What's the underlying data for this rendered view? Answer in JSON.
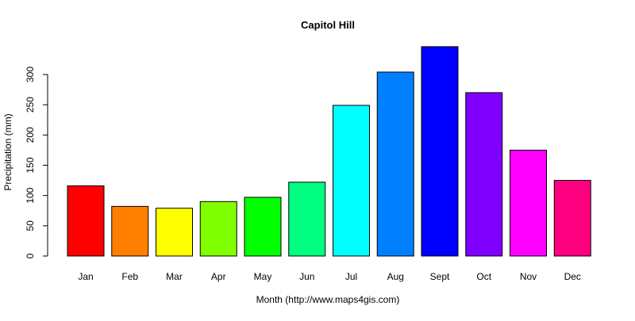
{
  "chart_data": {
    "type": "bar",
    "title": "Capitol Hill",
    "xlabel": "Month (http://www.maps4gis.com)",
    "ylabel": "Precipitation (mm)",
    "categories": [
      "Jan",
      "Feb",
      "Mar",
      "Apr",
      "May",
      "Jun",
      "Jul",
      "Aug",
      "Sept",
      "Oct",
      "Nov",
      "Dec"
    ],
    "values": [
      116,
      82,
      79,
      90,
      97,
      122,
      249,
      304,
      346,
      270,
      175,
      125
    ],
    "colors": [
      "#FF0000",
      "#FF8000",
      "#FFFF00",
      "#80FF00",
      "#00FF00",
      "#00FF80",
      "#00FFFF",
      "#0080FF",
      "#0000FF",
      "#8000FF",
      "#FF00FF",
      "#FF0080"
    ],
    "ylim": [
      0,
      350
    ],
    "yticks": [
      0,
      50,
      100,
      150,
      200,
      250,
      300
    ],
    "grid": false,
    "legend": "none"
  }
}
